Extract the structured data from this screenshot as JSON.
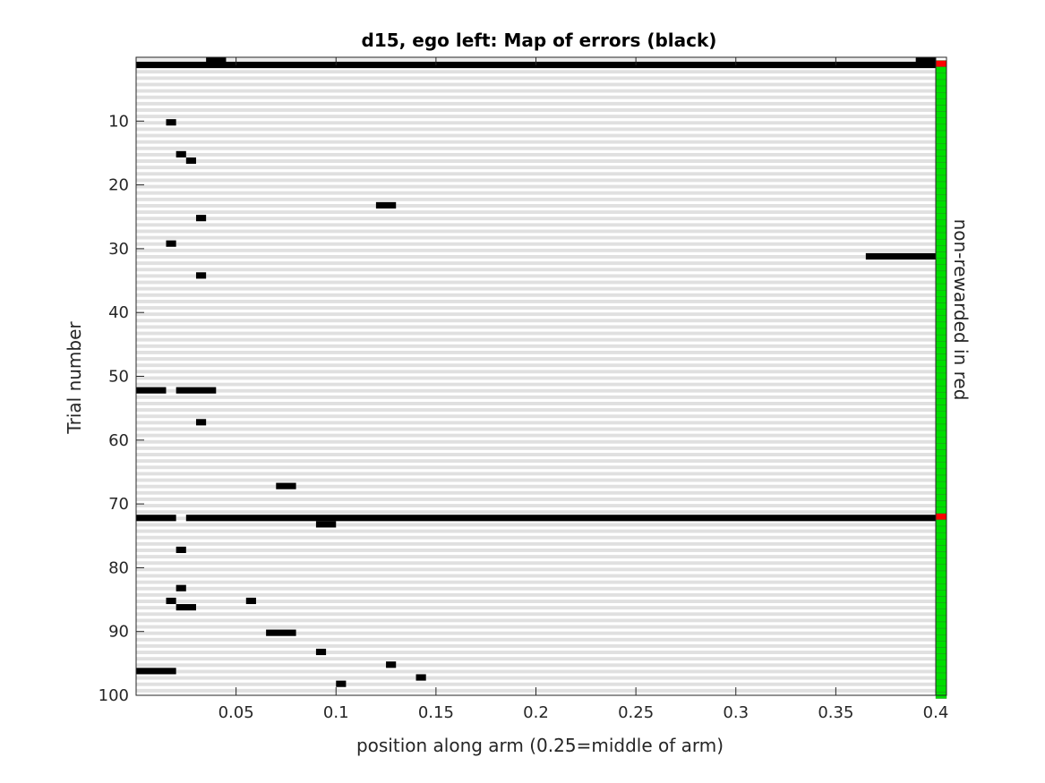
{
  "chart_data": {
    "type": "heatmap",
    "title": "d15, ego left: Map of errors (black)",
    "xlabel": "position along arm (0.25=middle of arm)",
    "ylabel": "Trial number",
    "right_label": "non-rewarded in red",
    "xlim": [
      0,
      0.4
    ],
    "ylim": [
      0,
      100
    ],
    "x_ticks": [
      0.05,
      0.1,
      0.15,
      0.2,
      0.25,
      0.3,
      0.35,
      0.4
    ],
    "x_tick_labels": [
      "0.05",
      "0.1",
      "0.15",
      "0.2",
      "0.25",
      "0.3",
      "0.35",
      "0.4"
    ],
    "y_ticks": [
      10,
      20,
      30,
      40,
      50,
      60,
      70,
      80,
      90,
      100
    ],
    "y_tick_labels": [
      "10",
      "20",
      "30",
      "40",
      "50",
      "60",
      "70",
      "80",
      "90",
      "100"
    ],
    "n_trials": 100,
    "background_colors": [
      "#e0e0e0",
      "#ffffff"
    ],
    "error_color": "#000000",
    "rewarded_color": "#00dd00",
    "non_rewarded_color": "#ff0000",
    "non_rewarded_trials": [
      1,
      72
    ],
    "top_band": {
      "trial": 0,
      "segments": [
        [
          0.035,
          0.045
        ],
        [
          0.39,
          0.4
        ]
      ]
    },
    "errors": [
      {
        "trial": 1,
        "x0": 0.0,
        "x1": 0.4
      },
      {
        "trial": 10,
        "x0": 0.015,
        "x1": 0.02
      },
      {
        "trial": 15,
        "x0": 0.02,
        "x1": 0.025
      },
      {
        "trial": 16,
        "x0": 0.025,
        "x1": 0.03
      },
      {
        "trial": 23,
        "x0": 0.12,
        "x1": 0.13
      },
      {
        "trial": 25,
        "x0": 0.03,
        "x1": 0.035
      },
      {
        "trial": 29,
        "x0": 0.015,
        "x1": 0.02
      },
      {
        "trial": 31,
        "x0": 0.365,
        "x1": 0.4
      },
      {
        "trial": 34,
        "x0": 0.03,
        "x1": 0.035
      },
      {
        "trial": 52,
        "x0": 0.0,
        "x1": 0.015
      },
      {
        "trial": 52,
        "x0": 0.02,
        "x1": 0.04
      },
      {
        "trial": 57,
        "x0": 0.03,
        "x1": 0.035
      },
      {
        "trial": 67,
        "x0": 0.07,
        "x1": 0.08
      },
      {
        "trial": 72,
        "x0": 0.0,
        "x1": 0.02
      },
      {
        "trial": 72,
        "x0": 0.025,
        "x1": 0.4
      },
      {
        "trial": 73,
        "x0": 0.09,
        "x1": 0.1
      },
      {
        "trial": 77,
        "x0": 0.02,
        "x1": 0.025
      },
      {
        "trial": 83,
        "x0": 0.02,
        "x1": 0.025
      },
      {
        "trial": 85,
        "x0": 0.015,
        "x1": 0.02
      },
      {
        "trial": 85,
        "x0": 0.055,
        "x1": 0.06
      },
      {
        "trial": 86,
        "x0": 0.02,
        "x1": 0.03
      },
      {
        "trial": 90,
        "x0": 0.065,
        "x1": 0.08
      },
      {
        "trial": 93,
        "x0": 0.09,
        "x1": 0.095
      },
      {
        "trial": 95,
        "x0": 0.125,
        "x1": 0.13
      },
      {
        "trial": 96,
        "x0": 0.0,
        "x1": 0.02
      },
      {
        "trial": 97,
        "x0": 0.14,
        "x1": 0.145
      },
      {
        "trial": 98,
        "x0": 0.1,
        "x1": 0.105
      }
    ]
  }
}
